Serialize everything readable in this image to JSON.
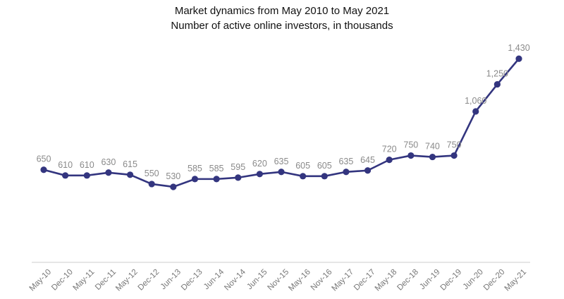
{
  "chart_data": {
    "type": "line",
    "title": "Market dynamics from May 2010 to May 2021",
    "subtitle": "Number of active online investors, in thousands",
    "xlabel": "",
    "ylabel": "",
    "categories": [
      "May-10",
      "Dec-10",
      "May-11",
      "Dec-11",
      "May-12",
      "Dec-12",
      "Jun-13",
      "Dec-13",
      "Jun-14",
      "Nov-14",
      "Jun-15",
      "Nov-15",
      "May-16",
      "Nov-16",
      "May-17",
      "Dec-17",
      "May-18",
      "Dec-18",
      "Jun-19",
      "Dec-19",
      "Jun-20",
      "Dec-20",
      "May-21"
    ],
    "series": [
      {
        "values": [
          650,
          610,
          610,
          630,
          615,
          550,
          530,
          585,
          585,
          595,
          620,
          635,
          605,
          605,
          635,
          645,
          720,
          750,
          740,
          750,
          1060,
          1250,
          1430
        ],
        "labels": [
          "650",
          "610",
          "610",
          "630",
          "615",
          "550",
          "530",
          "585",
          "585",
          "595",
          "620",
          "635",
          "605",
          "605",
          "635",
          "645",
          "720",
          "750",
          "740",
          "750",
          "1,060",
          "1,250",
          "1,430"
        ]
      }
    ],
    "ylim": [
      0,
      1550
    ],
    "grid": false,
    "legend": "none",
    "colors": {
      "line": "#33357f",
      "marker": "#33357f",
      "data_label": "#8a8a8a",
      "axis": "#cccccc"
    }
  }
}
